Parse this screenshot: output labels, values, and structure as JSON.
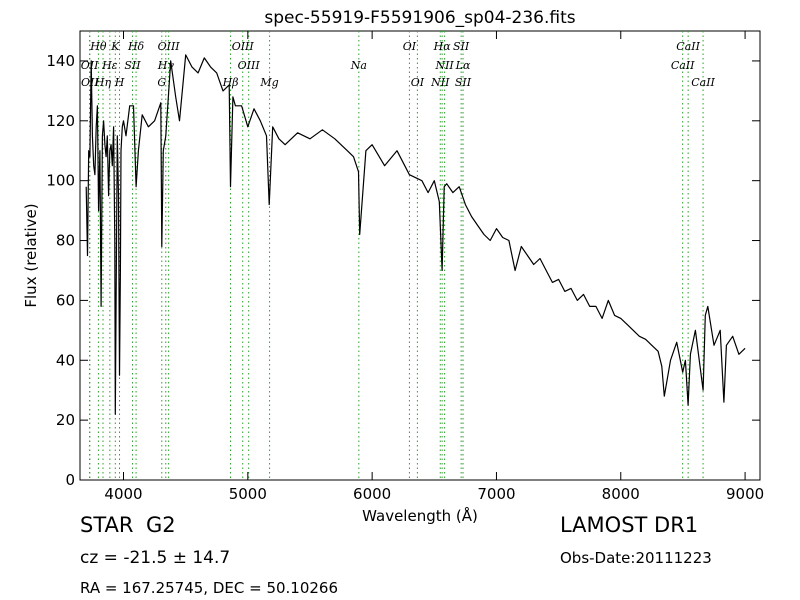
{
  "chart_data": {
    "type": "line",
    "title": "spec-55919-F5591906_sp04-236.fits",
    "xlabel": "Wavelength (Å)",
    "ylabel": "Flux (relative)",
    "xlim": [
      3650,
      9120
    ],
    "ylim": [
      0,
      150
    ],
    "xticks": [
      4000,
      5000,
      6000,
      7000,
      8000,
      9000
    ],
    "yticks": [
      0,
      20,
      40,
      60,
      80,
      100,
      120,
      140
    ],
    "grid": false,
    "line_color": "#000000",
    "marker_color": "#2ca02c",
    "series": [
      {
        "x": [
          3700,
          3710,
          3720,
          3730,
          3740,
          3750,
          3760,
          3770,
          3780,
          3790,
          3800,
          3810,
          3820,
          3830,
          3840,
          3850,
          3860,
          3870,
          3880,
          3890,
          3900,
          3910,
          3920,
          3930,
          3934,
          3940,
          3950,
          3960,
          3968,
          3975,
          3980,
          3990,
          4000,
          4020,
          4050,
          4080,
          4101,
          4120,
          4150,
          4200,
          4250,
          4300,
          4308,
          4320,
          4340,
          4380,
          4420,
          4450,
          4500,
          4550,
          4600,
          4650,
          4700,
          4750,
          4800,
          4850,
          4861,
          4880,
          4900,
          4950,
          5000,
          5050,
          5100,
          5150,
          5172,
          5200,
          5250,
          5300,
          5400,
          5500,
          5600,
          5700,
          5800,
          5850,
          5890,
          5900,
          5950,
          6000,
          6100,
          6200,
          6300,
          6400,
          6450,
          6500,
          6540,
          6563,
          6580,
          6600,
          6650,
          6700,
          6750,
          6800,
          6850,
          6900,
          6950,
          7000,
          7050,
          7100,
          7150,
          7200,
          7250,
          7300,
          7350,
          7400,
          7450,
          7500,
          7550,
          7600,
          7650,
          7700,
          7750,
          7800,
          7850,
          7900,
          7950,
          8000,
          8050,
          8100,
          8150,
          8200,
          8250,
          8300,
          8330,
          8350,
          8400,
          8450,
          8498,
          8520,
          8542,
          8560,
          8600,
          8662,
          8680,
          8700,
          8750,
          8800,
          8830,
          8850,
          8900,
          8950,
          9000
        ],
        "y": [
          98,
          75,
          110,
          108,
          140,
          115,
          105,
          102,
          118,
          125,
          90,
          110,
          58,
          115,
          120,
          112,
          108,
          115,
          95,
          110,
          112,
          105,
          118,
          80,
          22,
          60,
          115,
          95,
          35,
          70,
          110,
          118,
          120,
          115,
          125,
          125,
          98,
          110,
          122,
          118,
          120,
          126,
          78,
          110,
          115,
          140,
          128,
          120,
          142,
          138,
          136,
          141,
          138,
          136,
          130,
          132,
          98,
          128,
          125,
          125,
          118,
          124,
          120,
          115,
          92,
          118,
          114,
          112,
          116,
          114,
          117,
          114,
          110,
          108,
          103,
          82,
          110,
          112,
          105,
          110,
          102,
          100,
          96,
          100,
          93,
          70,
          98,
          99,
          96,
          98,
          92,
          88,
          85,
          82,
          80,
          84,
          81,
          80,
          70,
          78,
          75,
          72,
          74,
          70,
          66,
          67,
          63,
          64,
          60,
          62,
          58,
          58,
          54,
          60,
          55,
          54,
          52,
          50,
          48,
          47,
          45,
          43,
          38,
          28,
          40,
          46,
          36,
          40,
          25,
          42,
          50,
          30,
          55,
          58,
          45,
          50,
          26,
          45,
          48,
          42,
          44
        ]
      }
    ],
    "line_markers": [
      {
        "name": "Hθ",
        "wavelength": 3798,
        "row": 1
      },
      {
        "name": "K",
        "wavelength": 3934,
        "row": 1
      },
      {
        "name": "Hδ",
        "wavelength": 4101,
        "row": 1
      },
      {
        "name": "OIII",
        "wavelength": 4363,
        "row": 1
      },
      {
        "name": "OIII",
        "wavelength": 4959,
        "row": 1
      },
      {
        "name": "OI",
        "wavelength": 6300,
        "row": 1
      },
      {
        "name": "Hα",
        "wavelength": 6563,
        "row": 1
      },
      {
        "name": "SII",
        "wavelength": 6716,
        "row": 1
      },
      {
        "name": "CaII",
        "wavelength": 8542,
        "row": 1
      },
      {
        "name": "OII",
        "wavelength": 3727,
        "row": 2
      },
      {
        "name": "Hε",
        "wavelength": 3890,
        "row": 2
      },
      {
        "name": "SII",
        "wavelength": 4072,
        "row": 2
      },
      {
        "name": "Hγ",
        "wavelength": 4340,
        "row": 2
      },
      {
        "name": "OIII",
        "wavelength": 5007,
        "row": 2
      },
      {
        "name": "Na",
        "wavelength": 5893,
        "row": 2
      },
      {
        "name": "NII",
        "wavelength": 6583,
        "row": 2
      },
      {
        "name": "Lα",
        "wavelength": 6731,
        "row": 2
      },
      {
        "name": "CaII",
        "wavelength": 8498,
        "row": 2
      },
      {
        "name": "OII",
        "wavelength": 3729,
        "row": 3
      },
      {
        "name": "Hη",
        "wavelength": 3835,
        "row": 3
      },
      {
        "name": "H",
        "wavelength": 3968,
        "row": 3
      },
      {
        "name": "G",
        "wavelength": 4308,
        "row": 3
      },
      {
        "name": "Hβ",
        "wavelength": 4861,
        "row": 3
      },
      {
        "name": "Mg",
        "wavelength": 5175,
        "row": 3
      },
      {
        "name": "OI",
        "wavelength": 6364,
        "row": 3
      },
      {
        "name": "NII",
        "wavelength": 6548,
        "row": 3
      },
      {
        "name": "SII",
        "wavelength": 6731,
        "row": 3
      },
      {
        "name": "CaII",
        "wavelength": 8662,
        "row": 3
      }
    ]
  },
  "info": {
    "object_class": "STAR",
    "subclass": "G2",
    "cz": "cz = -21.5 ± 14.7",
    "survey": "LAMOST DR1",
    "obs_date": "Obs-Date:20111223",
    "radec": "RA = 167.25745, DEC = 50.10266"
  }
}
